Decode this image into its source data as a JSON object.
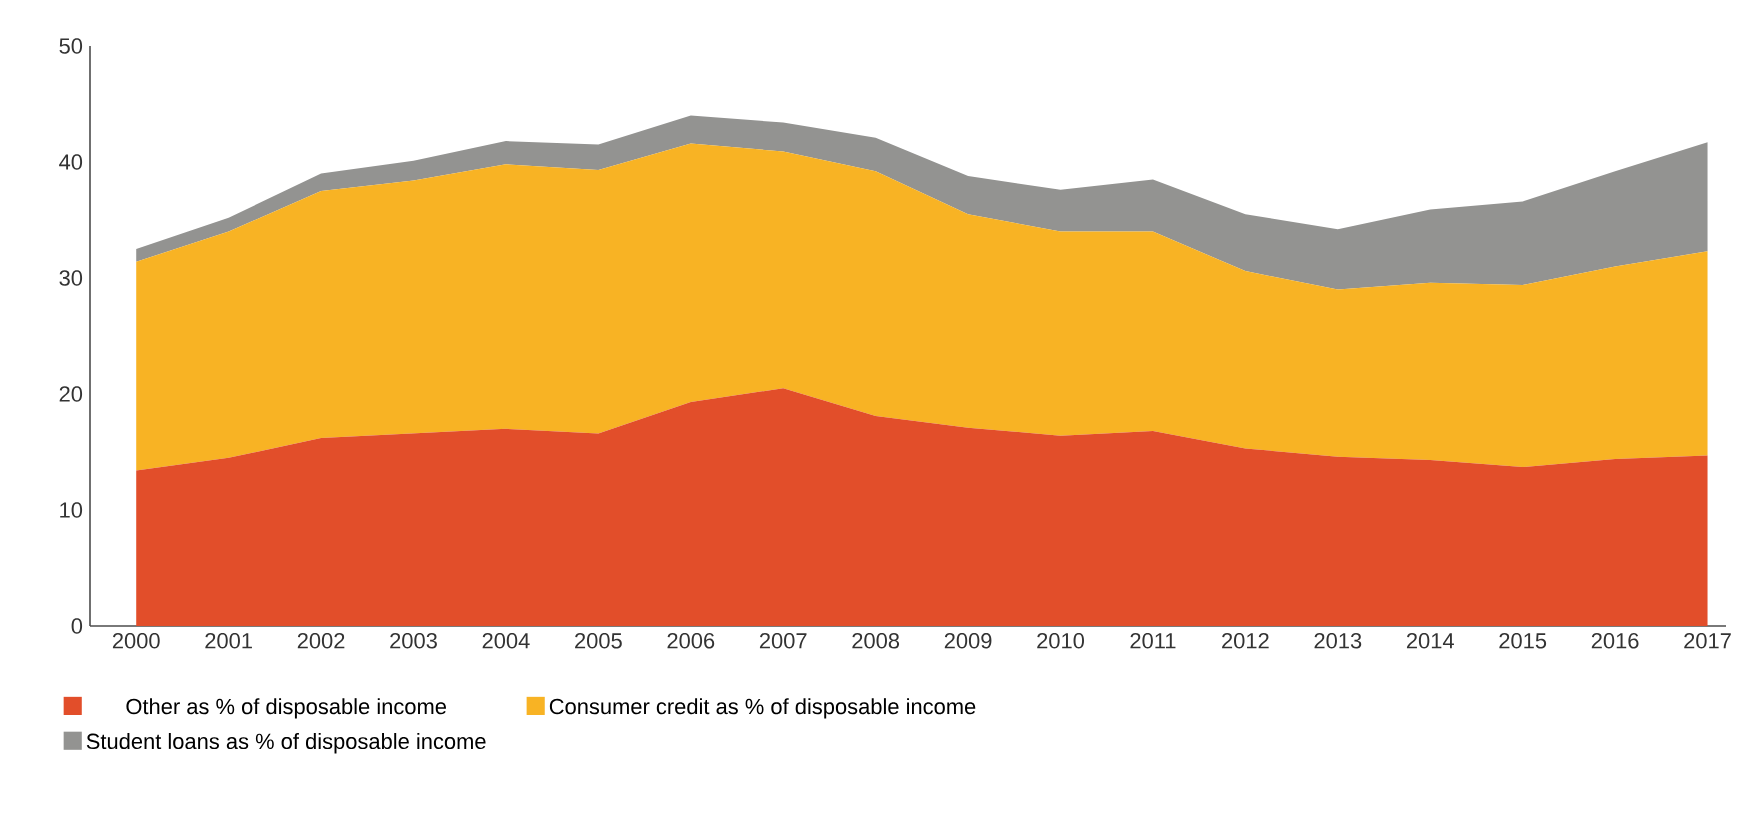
{
  "chart_data": {
    "type": "area",
    "stacked": true,
    "legend": "bottom",
    "grid": false,
    "categories": [
      "2000",
      "2001",
      "2002",
      "2003",
      "2004",
      "2005",
      "2006",
      "2007",
      "2008",
      "2009",
      "2010",
      "2011",
      "2012",
      "2013",
      "2014",
      "2015",
      "2016",
      "2017"
    ],
    "ylim": [
      0,
      50
    ],
    "yticks": [
      0,
      10,
      20,
      30,
      40,
      50
    ],
    "series": [
      {
        "name": "Other as % of disposable income",
        "color": "#e24e2a",
        "values": [
          13.4,
          14.5,
          16.2,
          16.6,
          17.0,
          16.6,
          19.3,
          20.5,
          18.1,
          17.1,
          16.4,
          16.8,
          15.3,
          14.6,
          14.3,
          13.7,
          14.4,
          14.7
        ]
      },
      {
        "name": "Consumer credit as % of disposable income",
        "color": "#f8b324",
        "values": [
          18.0,
          19.5,
          21.3,
          21.8,
          22.8,
          22.7,
          22.3,
          20.4,
          21.1,
          18.4,
          17.6,
          17.2,
          15.3,
          14.4,
          15.3,
          15.7,
          16.6,
          17.6
        ]
      },
      {
        "name": "Student loans as % of disposable income",
        "color": "#939391",
        "values": [
          1.1,
          1.2,
          1.5,
          1.7,
          2.0,
          2.2,
          2.4,
          2.5,
          2.9,
          3.3,
          3.6,
          4.5,
          4.9,
          5.2,
          6.3,
          7.2,
          8.2,
          9.4
        ]
      }
    ]
  }
}
